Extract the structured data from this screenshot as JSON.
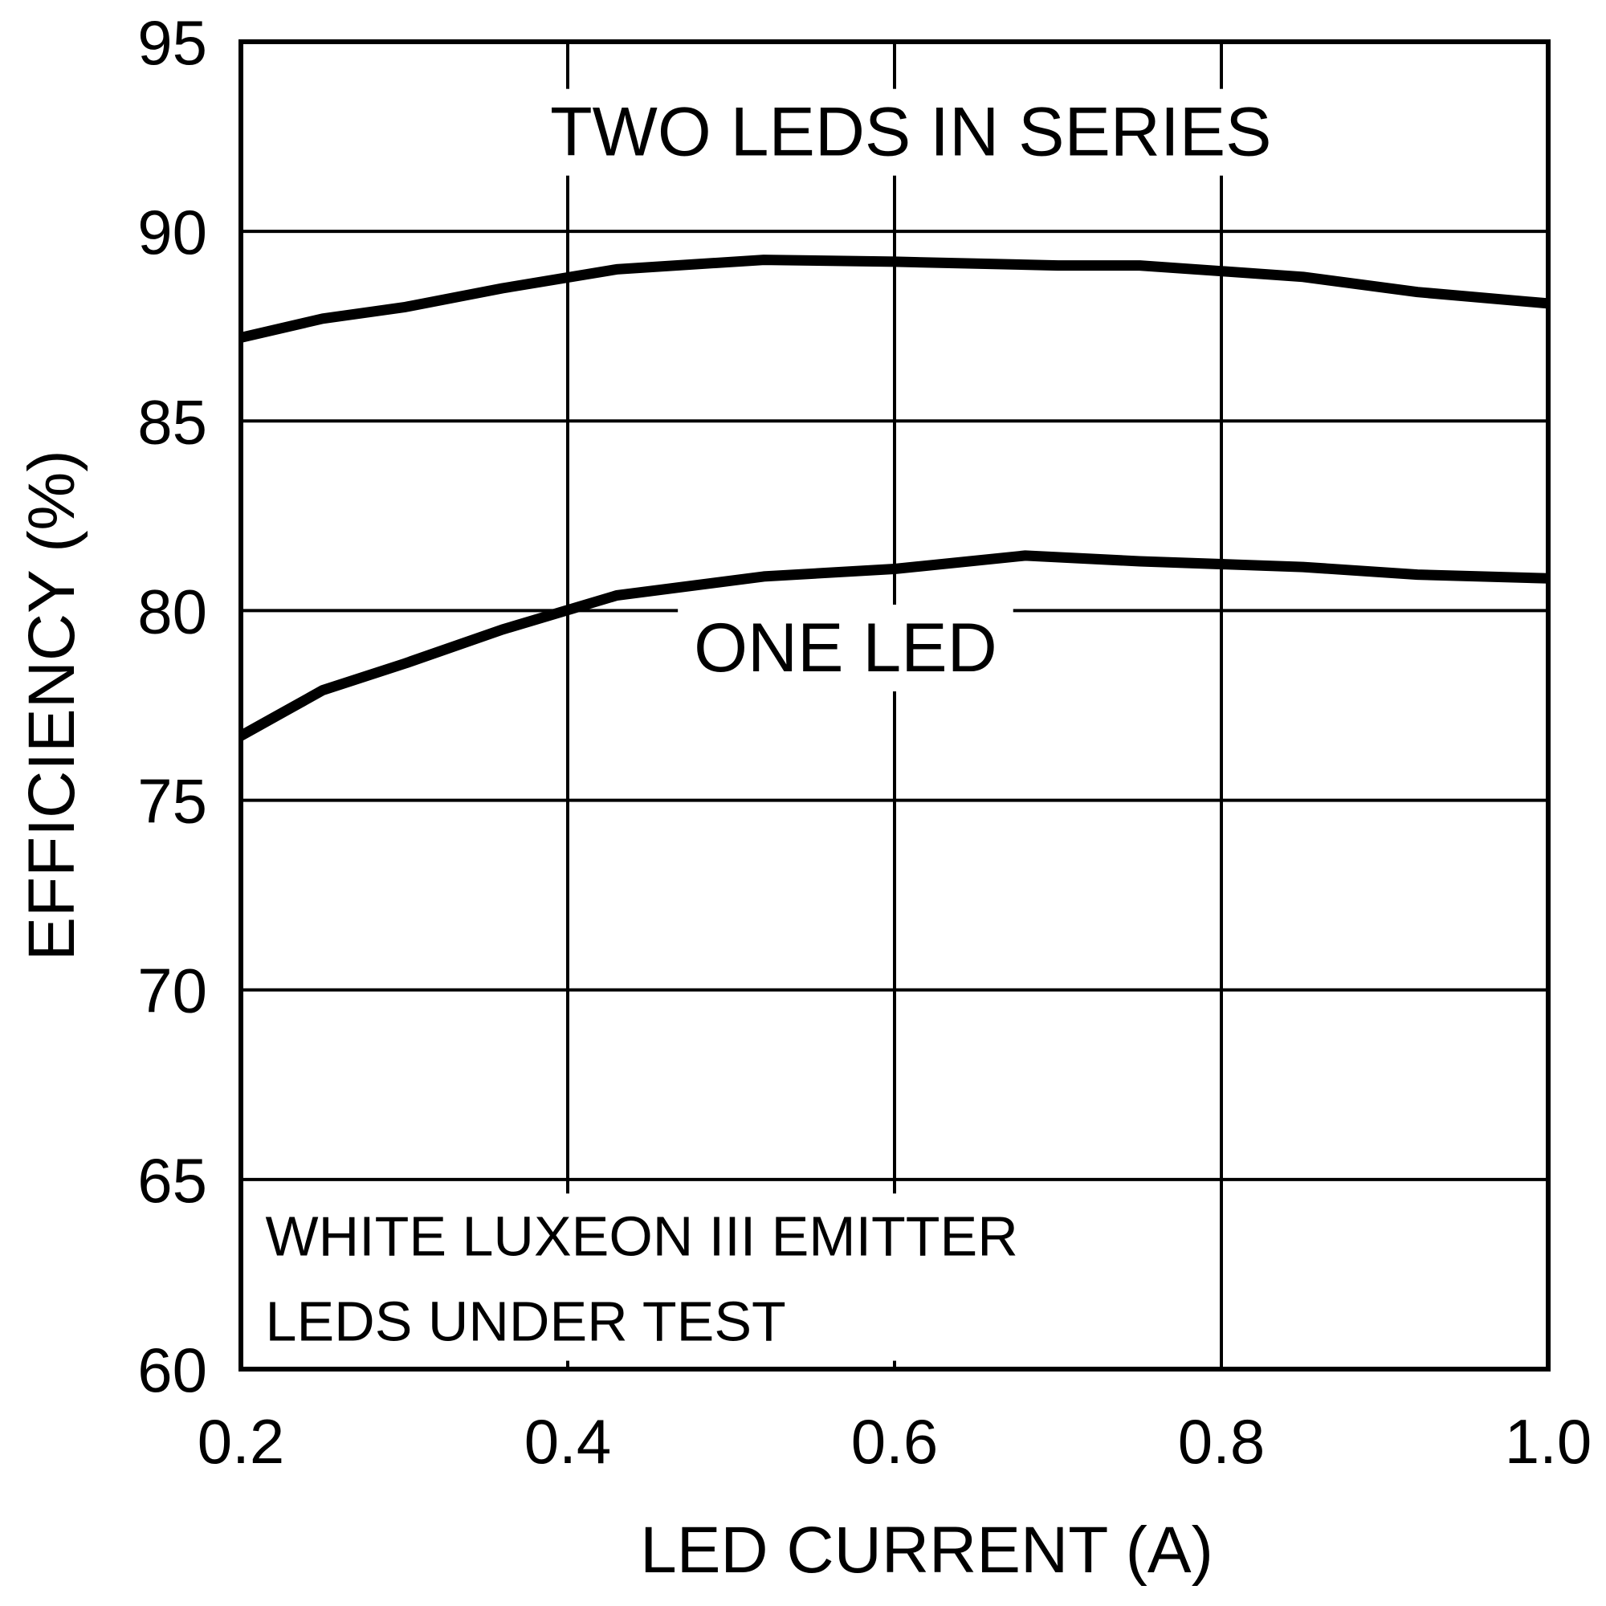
{
  "chart_data": {
    "type": "line",
    "title": "",
    "xlabel": "LED CURRENT (A)",
    "ylabel": "EFFICIENCY (%)",
    "xlim": [
      0.2,
      1.0
    ],
    "ylim": [
      60,
      95
    ],
    "x_ticks": [
      0.2,
      0.4,
      0.6,
      0.8,
      1.0
    ],
    "x_tick_labels": [
      "0.2",
      "0.4",
      "0.6",
      "0.8",
      "1.0"
    ],
    "y_ticks": [
      60,
      65,
      70,
      75,
      80,
      85,
      90,
      95
    ],
    "y_tick_labels": [
      "60",
      "65",
      "70",
      "75",
      "80",
      "85",
      "90",
      "95"
    ],
    "grid": true,
    "series": [
      {
        "x": [
          0.2,
          0.25,
          0.3,
          0.36,
          0.43,
          0.52,
          0.6,
          0.7,
          0.75,
          0.8,
          0.85,
          0.92,
          1.0
        ],
        "y": [
          87.2,
          87.7,
          88.0,
          88.5,
          89.0,
          89.25,
          89.2,
          89.1,
          89.1,
          88.95,
          88.8,
          88.4,
          88.1
        ]
      },
      {
        "x": [
          0.2,
          0.25,
          0.3,
          0.36,
          0.43,
          0.52,
          0.6,
          0.68,
          0.75,
          0.85,
          0.92,
          1.0
        ],
        "y": [
          76.7,
          77.9,
          78.6,
          79.5,
          80.4,
          80.9,
          81.1,
          81.45,
          81.3,
          81.15,
          80.95,
          80.85
        ]
      }
    ],
    "annotations": [
      {
        "text": "TWO LEDS IN SERIES",
        "x": 0.61,
        "y": 92.0,
        "size": "large"
      },
      {
        "text": "ONE LED",
        "x": 0.57,
        "y": 78.4,
        "size": "large"
      },
      {
        "text": "WHITE LUXEON III EMITTER",
        "x": 0.215,
        "y": 63.0,
        "size": "small",
        "anchor": "start"
      },
      {
        "text": "LEDS UNDER TEST",
        "x": 0.215,
        "y": 60.75,
        "size": "small",
        "anchor": "start"
      }
    ],
    "colors": {
      "line": "#000000",
      "grid": "#000000",
      "background": "#ffffff"
    }
  }
}
